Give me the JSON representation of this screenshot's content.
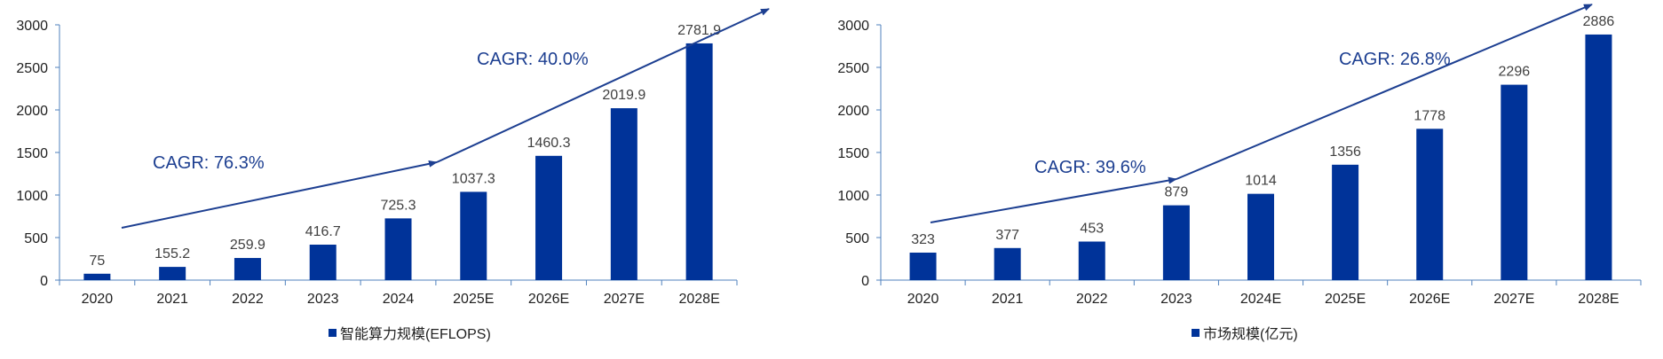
{
  "chart_data": [
    {
      "type": "bar",
      "categories": [
        "2020",
        "2021",
        "2022",
        "2023",
        "2024",
        "2025E",
        "2026E",
        "2027E",
        "2028E"
      ],
      "series": [
        {
          "name": "智能算力规模(EFLOPS)",
          "values": [
            75,
            155.2,
            259.9,
            416.7,
            725.3,
            1037.3,
            1460.3,
            2019.9,
            2781.9
          ],
          "labels": [
            "75",
            "155.2",
            "259.9",
            "416.7",
            "725.3",
            "1037.3",
            "1460.3",
            "2019.9",
            "2781.9"
          ]
        }
      ],
      "ylim": [
        0,
        3000
      ],
      "yticks": [
        "0",
        "500",
        "1000",
        "1500",
        "2000",
        "2500",
        "3000"
      ],
      "legend_position": "bottom",
      "annotations": [
        {
          "text": "CAGR: 76.3%",
          "from_category": "2020",
          "to_category": "2024"
        },
        {
          "text": "CAGR: 40.0%",
          "from_category": "2024",
          "to_category": "2028E"
        }
      ],
      "bar_color": "#003399",
      "arrow_color": "#1d3f91"
    },
    {
      "type": "bar",
      "categories": [
        "2020",
        "2021",
        "2022",
        "2023",
        "2024E",
        "2025E",
        "2026E",
        "2027E",
        "2028E"
      ],
      "series": [
        {
          "name": "市场规模(亿元)",
          "values": [
            323,
            377,
            453,
            879,
            1014,
            1356,
            1778,
            2296,
            2886
          ],
          "labels": [
            "323",
            "377",
            "453",
            "879",
            "1014",
            "1356",
            "1778",
            "2296",
            "2886"
          ]
        }
      ],
      "ylim": [
        0,
        3000
      ],
      "yticks": [
        "0",
        "500",
        "1000",
        "1500",
        "2000",
        "2500",
        "3000"
      ],
      "legend_position": "bottom",
      "annotations": [
        {
          "text": "CAGR: 39.6%",
          "from_category": "2020",
          "to_category": "2023"
        },
        {
          "text": "CAGR: 26.8%",
          "from_category": "2023",
          "to_category": "2028E"
        }
      ],
      "bar_color": "#003399",
      "arrow_color": "#1d3f91"
    }
  ]
}
